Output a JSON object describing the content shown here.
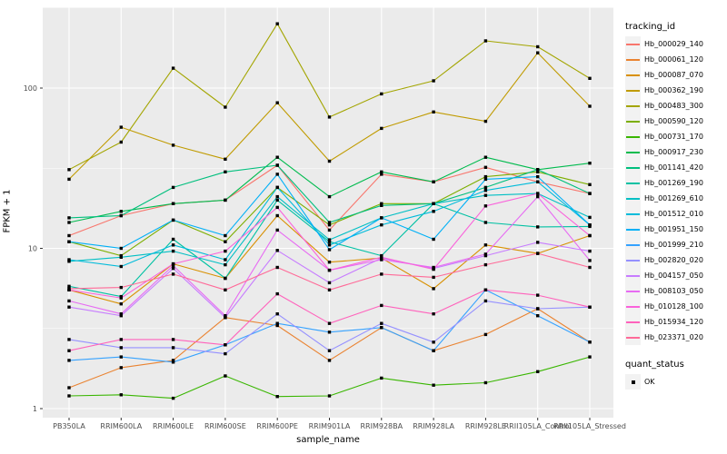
{
  "chart": {
    "xlabel": "sample_name",
    "ylabel": "FPKM + 1",
    "panel_bg": "#EBEBEB",
    "grid_color": "#FFFFFF",
    "tick_label_color": "#4D4D4D",
    "point_color": "#000000",
    "legend": {
      "tracking_title": "tracking_id",
      "quant_title": "quant_status",
      "quant_label": "OK"
    }
  },
  "chart_data": {
    "type": "line",
    "title": "",
    "xlabel": "sample_name",
    "ylabel": "FPKM + 1",
    "y_scale": "log10",
    "y_ticks": [
      1,
      10,
      100
    ],
    "y_minor_ticks": [
      3.162,
      31.62,
      316.2
    ],
    "ylim": [
      1,
      320
    ],
    "grid": true,
    "legend_position": "right",
    "point_shape": "filled-square",
    "categories": [
      "PB350LA",
      "RRIM600LA",
      "RRIM600LE",
      "RRIM600SE",
      "RRIM600PE",
      "RRIM901LA",
      "RRIM928BA",
      "RRIM928LA",
      "RRIM928LE",
      "RRII105LA_Control",
      "RRII105LA_Stressed"
    ],
    "series": [
      {
        "name": "Hb_000029_140",
        "color": "#F8766D",
        "values": [
          12,
          16,
          19,
          20,
          33,
          13,
          29,
          26,
          32,
          26,
          22
        ]
      },
      {
        "name": "Hb_000061_120",
        "color": "#EA8331",
        "values": [
          1.35,
          1.8,
          2.0,
          3.7,
          3.3,
          2.0,
          3.2,
          2.3,
          2.9,
          4.2,
          2.6
        ]
      },
      {
        "name": "Hb_000087_070",
        "color": "#D89000",
        "values": [
          5.5,
          4.5,
          8.0,
          6.5,
          16,
          8.2,
          8.7,
          5.6,
          10.5,
          9.3,
          12
        ]
      },
      {
        "name": "Hb_000362_190",
        "color": "#C09B00",
        "values": [
          27,
          57,
          44,
          36,
          81,
          35,
          56,
          71,
          62,
          166,
          77
        ]
      },
      {
        "name": "Hb_000483_300",
        "color": "#A3A500",
        "values": [
          31,
          46,
          133,
          76,
          252,
          66,
          92,
          111,
          197,
          181,
          115
        ]
      },
      {
        "name": "Hb_000590_120",
        "color": "#7CAE00",
        "values": [
          11,
          9,
          15,
          11,
          24,
          14,
          19,
          19,
          28,
          30,
          25
        ]
      },
      {
        "name": "Hb_000731_170",
        "color": "#39B600",
        "values": [
          1.2,
          1.22,
          1.16,
          1.6,
          1.19,
          1.2,
          1.55,
          1.4,
          1.45,
          1.7,
          2.1
        ]
      },
      {
        "name": "Hb_000917_230",
        "color": "#00BB4E",
        "values": [
          14.5,
          17,
          19,
          20,
          37,
          21,
          30,
          26,
          37,
          31,
          34
        ]
      },
      {
        "name": "Hb_001141_420",
        "color": "#00BF7D",
        "values": [
          15.5,
          16,
          24,
          30,
          33,
          14.5,
          18.5,
          19,
          24,
          31,
          22
        ]
      },
      {
        "name": "Hb_001269_190",
        "color": "#00C1A3",
        "values": [
          5.8,
          5.0,
          11.4,
          6.5,
          20,
          11,
          9,
          19,
          14.5,
          13.6,
          13.7
        ]
      },
      {
        "name": "Hb_001269_610",
        "color": "#00BFC4",
        "values": [
          8.3,
          8.8,
          9.6,
          7.9,
          21,
          11.3,
          15.5,
          19,
          21.4,
          22,
          15.6
        ]
      },
      {
        "name": "Hb_001512_010",
        "color": "#00BBDA",
        "values": [
          8.5,
          7.7,
          10.5,
          8.5,
          24,
          10.5,
          14,
          17,
          23,
          26,
          14
        ]
      },
      {
        "name": "Hb_001951_150",
        "color": "#00B0F6",
        "values": [
          11,
          10,
          15,
          12,
          29,
          9.8,
          15.5,
          11.4,
          27,
          28,
          14
        ]
      },
      {
        "name": "Hb_001999_210",
        "color": "#35A2FF",
        "values": [
          2.0,
          2.1,
          1.95,
          2.5,
          3.4,
          3.0,
          3.2,
          2.3,
          5.5,
          3.8,
          2.6
        ]
      },
      {
        "name": "Hb_002820_020",
        "color": "#9590FF",
        "values": [
          2.7,
          2.4,
          2.4,
          2.2,
          3.9,
          2.3,
          3.4,
          2.6,
          4.7,
          4.2,
          4.3
        ]
      },
      {
        "name": "Hb_004157_050",
        "color": "#C77CFF",
        "values": [
          4.3,
          3.8,
          7.5,
          3.7,
          9.7,
          6.1,
          8.7,
          7.5,
          9.0,
          10.9,
          9.6
        ]
      },
      {
        "name": "Hb_008103_050",
        "color": "#E76BF3",
        "values": [
          4.7,
          3.9,
          7.8,
          3.8,
          13,
          7.3,
          8.5,
          7.6,
          9.2,
          21,
          8.4
        ]
      },
      {
        "name": "Hb_010128_100",
        "color": "#FA62DB",
        "values": [
          5.5,
          4.9,
          8.0,
          9.6,
          18,
          7.3,
          8.8,
          7.4,
          18.4,
          22,
          12
        ]
      },
      {
        "name": "Hb_015934_120",
        "color": "#FF62BC",
        "values": [
          2.3,
          2.7,
          2.7,
          2.5,
          5.2,
          3.4,
          4.4,
          3.9,
          5.5,
          5.1,
          4.3
        ]
      },
      {
        "name": "Hb_023371_020",
        "color": "#FF6A98",
        "values": [
          5.6,
          5.7,
          6.9,
          5.5,
          7.6,
          5.5,
          6.9,
          6.6,
          7.9,
          9.3,
          7.6
        ]
      }
    ]
  }
}
